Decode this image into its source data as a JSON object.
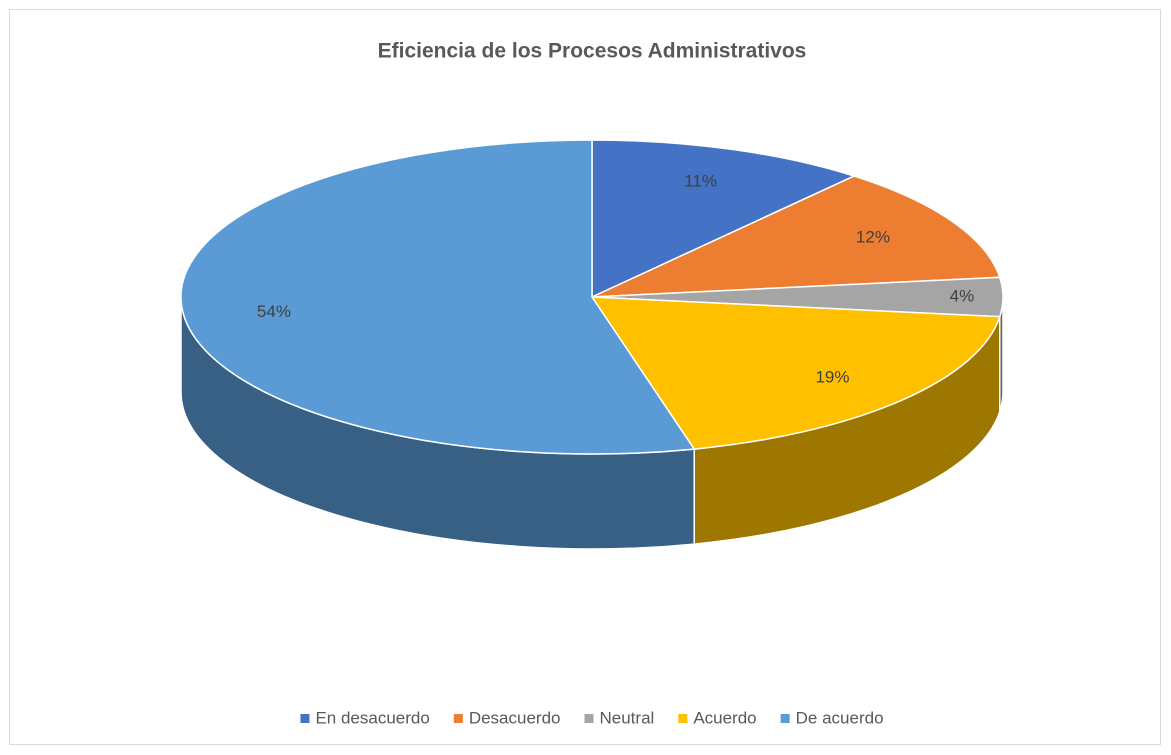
{
  "chart_data": {
    "type": "pie3d",
    "title": "Eficiencia de los Procesos Administrativos",
    "categories": [
      "En desacuerdo",
      "Desacuerdo",
      "Neutral",
      "Acuerdo",
      "De acuerdo"
    ],
    "values": [
      11,
      12,
      4,
      19,
      54
    ],
    "value_labels": [
      "11%",
      "12%",
      "4%",
      "19%",
      "54%"
    ],
    "colors": [
      "#4472c4",
      "#ed7d31",
      "#a5a5a5",
      "#ffc000",
      "#5b9bd5"
    ],
    "legend": "bottom"
  }
}
